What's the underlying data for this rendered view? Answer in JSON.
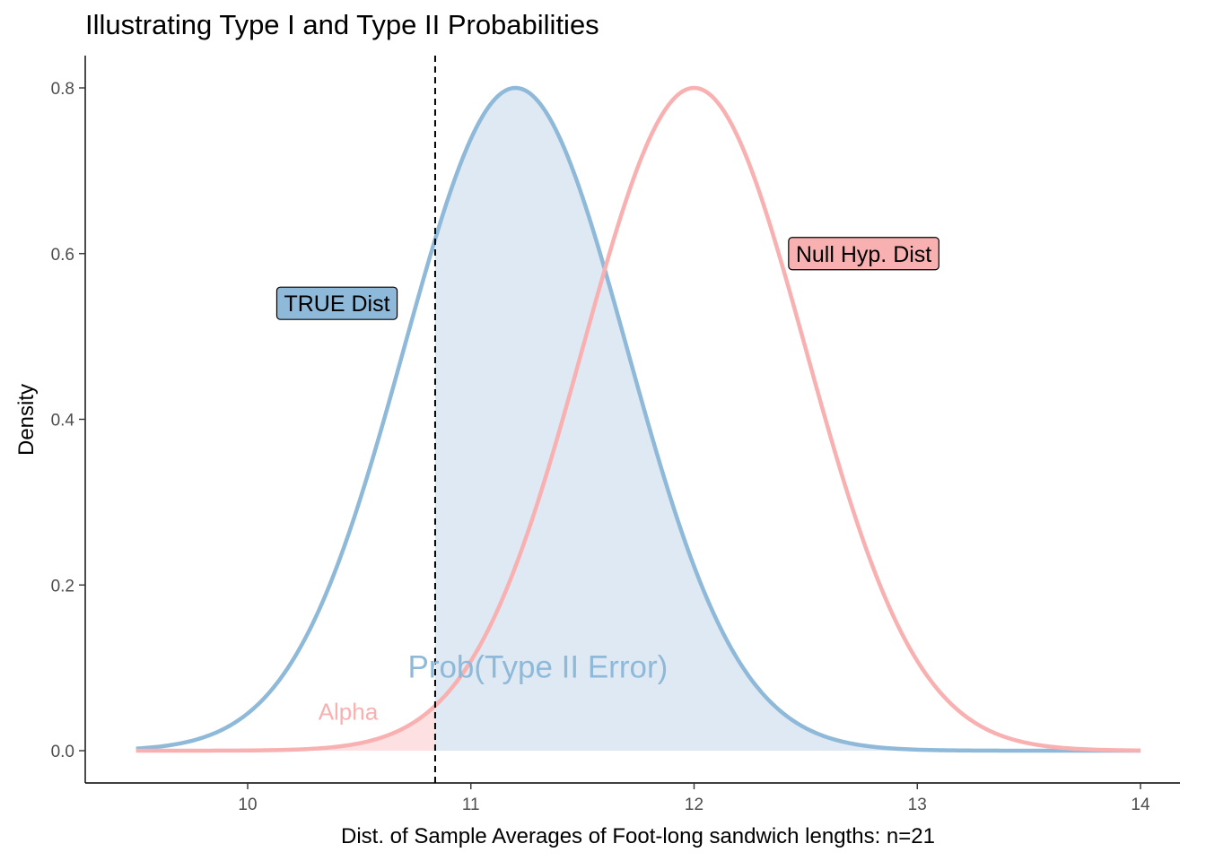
{
  "chart_data": {
    "type": "area",
    "title": "Illustrating Type I and Type II Probabilities",
    "xlabel": "Dist. of Sample Averages of Foot-long sandwich lengths: n=21",
    "ylabel": "Density",
    "xlim": [
      9.5,
      14.0
    ],
    "ylim": [
      0.0,
      0.8
    ],
    "x_ticks": [
      10,
      11,
      12,
      13,
      14
    ],
    "x_tick_labels": [
      "10",
      "11",
      "12",
      "13",
      "14"
    ],
    "y_ticks": [
      0.0,
      0.2,
      0.4,
      0.6,
      0.8
    ],
    "y_tick_labels": [
      "0.0",
      "0.2",
      "0.4",
      "0.6",
      "0.8"
    ],
    "grid": false,
    "series": [
      {
        "name": "TRUE Dist",
        "color": "#8fb9d9",
        "distribution": "normal",
        "mean": 11.2,
        "sd": 0.5,
        "peak_density": 0.8
      },
      {
        "name": "Null Hyp. Dist",
        "color": "#f9b0b1",
        "distribution": "normal",
        "mean": 12.0,
        "sd": 0.5,
        "peak_density": 0.8
      }
    ],
    "critical_value": 10.84,
    "critical_line_style": "dashed",
    "shaded_regions": [
      {
        "series": "Null Hyp. Dist",
        "from": 9.5,
        "to": 10.84,
        "color": "#fde0e1"
      },
      {
        "series": "TRUE Dist",
        "from": 10.84,
        "to": 14.0,
        "color": "#dee9f4"
      }
    ],
    "labels": [
      {
        "text": "TRUE Dist",
        "x": 10.4,
        "y": 0.54,
        "fill": "#8fb9d9"
      },
      {
        "text": "Null Hyp. Dist",
        "x": 12.76,
        "y": 0.6,
        "fill": "#f9b0b1"
      }
    ],
    "annotations": [
      {
        "text": "Alpha",
        "x": 10.45,
        "y": 0.047,
        "color": "#f9b0b1"
      },
      {
        "text": "Prob(Type II Error)",
        "x": 11.3,
        "y": 0.098,
        "color": "#8fb9d9"
      }
    ]
  }
}
